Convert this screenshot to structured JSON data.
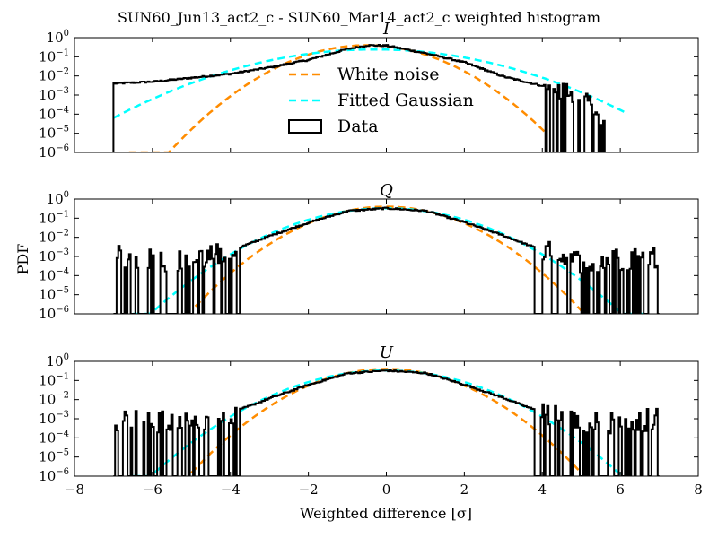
{
  "figure": {
    "title": "SUN60_Jun13_act2_c - SUN60_Mar14_act2_c weighted histogram",
    "ylabel": "PDF",
    "xlabel": "Weighted difference [σ]"
  },
  "legend": {
    "entries": [
      {
        "label": "White noise",
        "style": "dashed",
        "color": "#ff8c00"
      },
      {
        "label": "Fitted Gaussian",
        "style": "dashed",
        "color": "#00ffff"
      },
      {
        "label": "Data",
        "style": "box",
        "color": "#000000"
      }
    ]
  },
  "chart_data": [
    {
      "type": "line",
      "title": "I",
      "x_range": [
        -8,
        8
      ],
      "y_range": [
        1e-06,
        1
      ],
      "y_scale": "log",
      "x_ticks": [
        -8,
        -6,
        -4,
        -2,
        0,
        2,
        4,
        6,
        8
      ],
      "y_ticks": [
        "10^0",
        "10^-1",
        "10^-2",
        "10^-3",
        "10^-4",
        "10^-5",
        "10^-6"
      ],
      "series": [
        {
          "name": "White noise",
          "kind": "gaussian",
          "mean": -0.5,
          "sigma": 1.0,
          "color": "#ff8c00",
          "x_span": [
            -6.6,
            4.1
          ]
        },
        {
          "name": "Fitted Gaussian",
          "kind": "gaussian",
          "mean": -0.3,
          "sigma": 1.65,
          "color": "#00ffff",
          "x_span": [
            -7.0,
            6.1
          ]
        },
        {
          "name": "Data",
          "kind": "histogram",
          "color": "#000000",
          "x_span": [
            -7.0,
            5.6
          ],
          "points": [
            [
              -7.0,
              0.004
            ],
            [
              -6.0,
              0.005
            ],
            [
              -5.0,
              0.008
            ],
            [
              -4.0,
              0.013
            ],
            [
              -3.0,
              0.028
            ],
            [
              -2.0,
              0.07
            ],
            [
              -1.0,
              0.26
            ],
            [
              -0.5,
              0.4
            ],
            [
              0.0,
              0.38
            ],
            [
              1.0,
              0.15
            ],
            [
              2.0,
              0.05
            ],
            [
              3.0,
              0.009
            ],
            [
              4.0,
              0.003
            ],
            [
              5.0,
              0.0005
            ],
            [
              5.6,
              5e-05
            ]
          ]
        }
      ]
    },
    {
      "type": "line",
      "title": "Q",
      "x_range": [
        -8,
        8
      ],
      "y_range": [
        1e-06,
        1
      ],
      "y_scale": "log",
      "x_ticks": [
        -8,
        -6,
        -4,
        -2,
        0,
        2,
        4,
        6,
        8
      ],
      "y_ticks": [
        "10^0",
        "10^-1",
        "10^-2",
        "10^-3",
        "10^-4",
        "10^-5",
        "10^-6"
      ],
      "series": [
        {
          "name": "White noise",
          "kind": "gaussian",
          "mean": 0.0,
          "sigma": 1.0,
          "color": "#ff8c00",
          "x_span": [
            -4.9,
            5.0
          ]
        },
        {
          "name": "Fitted Gaussian",
          "kind": "gaussian",
          "mean": 0.0,
          "sigma": 1.2,
          "color": "#00ffff",
          "x_span": [
            -6.5,
            6.7
          ]
        },
        {
          "name": "Data",
          "kind": "histogram",
          "color": "#000000",
          "x_span": [
            -7.0,
            7.0
          ],
          "points": [
            [
              -7.0,
              0.001
            ],
            [
              -5.0,
              0.0005
            ],
            [
              -4.0,
              0.002
            ],
            [
              -3.0,
              0.012
            ],
            [
              -2.0,
              0.06
            ],
            [
              -1.0,
              0.24
            ],
            [
              0.0,
              0.33
            ],
            [
              1.0,
              0.24
            ],
            [
              2.0,
              0.06
            ],
            [
              3.0,
              0.012
            ],
            [
              4.0,
              0.002
            ],
            [
              5.0,
              0.0005
            ],
            [
              7.0,
              0.001
            ]
          ]
        }
      ]
    },
    {
      "type": "line",
      "title": "U",
      "x_range": [
        -8,
        8
      ],
      "y_range": [
        1e-06,
        1
      ],
      "y_scale": "log",
      "x_ticks": [
        -8,
        -6,
        -4,
        -2,
        0,
        2,
        4,
        6,
        8
      ],
      "y_ticks": [
        "10^0",
        "10^-1",
        "10^-2",
        "10^-3",
        "10^-4",
        "10^-5",
        "10^-6"
      ],
      "series": [
        {
          "name": "White noise",
          "kind": "gaussian",
          "mean": 0.0,
          "sigma": 1.0,
          "color": "#ff8c00",
          "x_span": [
            -5.0,
            5.0
          ]
        },
        {
          "name": "Fitted Gaussian",
          "kind": "gaussian",
          "mean": 0.0,
          "sigma": 1.2,
          "color": "#00ffff",
          "x_span": [
            -6.5,
            6.4
          ]
        },
        {
          "name": "Data",
          "kind": "histogram",
          "color": "#000000",
          "x_span": [
            -7.0,
            7.0
          ],
          "points": [
            [
              -7.0,
              0.001
            ],
            [
              -5.0,
              0.0005
            ],
            [
              -4.0,
              0.002
            ],
            [
              -3.0,
              0.012
            ],
            [
              -2.0,
              0.06
            ],
            [
              -1.0,
              0.24
            ],
            [
              0.0,
              0.33
            ],
            [
              1.0,
              0.24
            ],
            [
              2.0,
              0.06
            ],
            [
              3.0,
              0.012
            ],
            [
              4.0,
              0.002
            ],
            [
              5.0,
              0.0005
            ],
            [
              7.0,
              0.001
            ]
          ]
        }
      ]
    }
  ]
}
